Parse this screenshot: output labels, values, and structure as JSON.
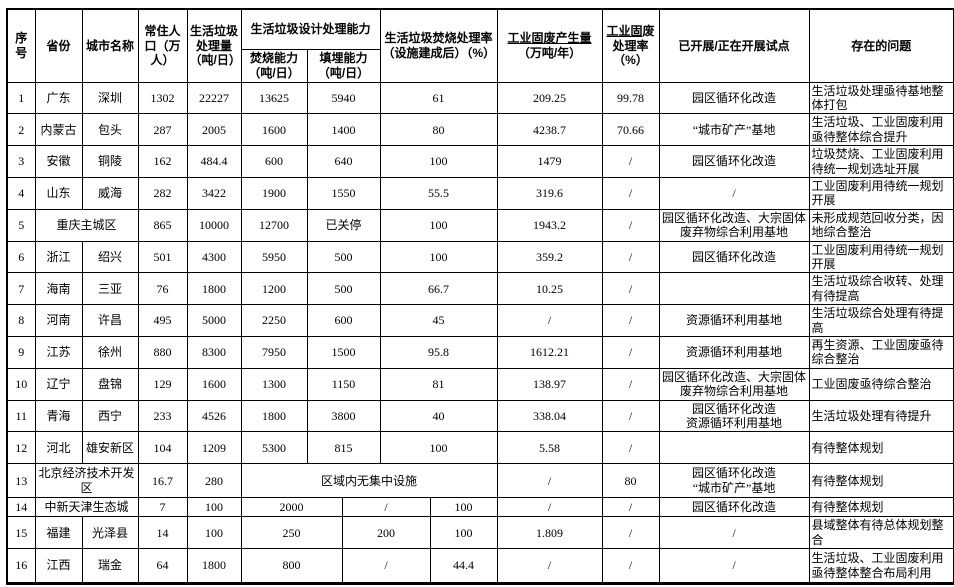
{
  "table": {
    "headers": {
      "no": "序号",
      "province": "省份",
      "city": "城市名称",
      "population": "常住人口（万人）",
      "daily_amount": "生活垃圾处理量（吨/日）",
      "design_capacity": "生活垃圾设计处理能力",
      "incineration_capacity": "焚烧能力（吨/日）",
      "landfill_capacity": "填埋能力（吨/日）",
      "incineration_rate": "生活垃圾焚烧处理率（设施建成后）（%）",
      "industrial_gen_underlined": "工业固废产生量",
      "industrial_gen_unit": "（万吨/年）",
      "industrial_rate_underlined": "工业固",
      "industrial_rate_rest": "废处理率（%）",
      "pilots": "已开展/正在开展试点",
      "problems": "存在的问题"
    },
    "rows": [
      {
        "no": "1",
        "province": "广东",
        "city": "深圳",
        "population": "1302",
        "daily_amount": "22227",
        "capacity": [
          "13625",
          "5940",
          "61"
        ],
        "industrial_gen": "209.25",
        "industrial_rate": "99.78",
        "pilot": "园区循环化改造",
        "problem": "生活垃圾处理亟待基地整体打包"
      },
      {
        "no": "2",
        "province": "内蒙古",
        "city": "包头",
        "population": "287",
        "daily_amount": "2005",
        "capacity": [
          "1600",
          "1400",
          "80"
        ],
        "industrial_gen": "4238.7",
        "industrial_rate": "70.66",
        "pilot": "“城市矿产”基地",
        "problem": "生活垃圾、工业固废利用亟待整体综合提升"
      },
      {
        "no": "3",
        "province": "安徽",
        "city": "铜陵",
        "population": "162",
        "daily_amount": "484.4",
        "capacity": [
          "600",
          "640",
          "100"
        ],
        "industrial_gen": "1479",
        "industrial_rate": "/",
        "pilot": "园区循环化改造",
        "problem": "垃圾焚烧、工业固废利用待统一规划选址开展"
      },
      {
        "no": "4",
        "province": "山东",
        "city": "威海",
        "population": "282",
        "daily_amount": "3422",
        "capacity": [
          "1900",
          "1550",
          "55.5"
        ],
        "industrial_gen": "319.6",
        "industrial_rate": "/",
        "pilot": "/",
        "problem": "工业固废利用待统一规划开展"
      },
      {
        "no": "5",
        "province": "重庆主城区",
        "city": "",
        "name_merged": true,
        "population": "865",
        "daily_amount": "10000",
        "capacity": [
          "12700",
          "已关停",
          "100"
        ],
        "industrial_gen": "1943.2",
        "industrial_rate": "/",
        "pilot": "园区循环化改造、大宗固体废弃物综合利用基地",
        "problem": "未形成规范回收分类，因地综合整治"
      },
      {
        "no": "6",
        "province": "浙江",
        "city": "绍兴",
        "population": "501",
        "daily_amount": "4300",
        "capacity": [
          "5950",
          "500",
          "100"
        ],
        "industrial_gen": "359.2",
        "industrial_rate": "/",
        "pilot": "园区循环化改造",
        "problem": "工业固废利用待统一规划开展"
      },
      {
        "no": "7",
        "province": "海南",
        "city": "三亚",
        "population": "76",
        "daily_amount": "1800",
        "capacity": [
          "1200",
          "500",
          "66.7"
        ],
        "industrial_gen": "10.25",
        "industrial_rate": "/",
        "pilot": "",
        "problem": "生活垃圾综合收转、处理有待提高"
      },
      {
        "no": "8",
        "province": "河南",
        "city": "许昌",
        "population": "495",
        "daily_amount": "5000",
        "capacity": [
          "2250",
          "600",
          "45"
        ],
        "industrial_gen": "/",
        "industrial_rate": "/",
        "pilot": "资源循环利用基地",
        "problem": "生活垃圾综合处理有待提高"
      },
      {
        "no": "9",
        "province": "江苏",
        "city": "徐州",
        "population": "880",
        "daily_amount": "8300",
        "capacity": [
          "7950",
          "1500",
          "95.8"
        ],
        "industrial_gen": "1612.21",
        "industrial_rate": "/",
        "pilot": "资源循环利用基地",
        "problem": "再生资源、工业固废亟待综合整治"
      },
      {
        "no": "10",
        "province": "辽宁",
        "city": "盘锦",
        "population": "129",
        "daily_amount": "1600",
        "capacity": [
          "1300",
          "1150",
          "81"
        ],
        "industrial_gen": "138.97",
        "industrial_rate": "/",
        "pilot": "园区循环化改造、大宗固体废弃物综合利用基地",
        "problem": "工业固废亟待综合整治"
      },
      {
        "no": "11",
        "province": "青海",
        "city": "西宁",
        "population": "233",
        "daily_amount": "4526",
        "capacity": [
          "1800",
          "3800",
          "40"
        ],
        "industrial_gen": "338.04",
        "industrial_rate": "/",
        "pilot": "园区循环化改造\n资源循环利用基地",
        "problem": "生活垃圾处理有待提升"
      },
      {
        "no": "12",
        "province": "河北",
        "city": "雄安新区",
        "population": "104",
        "daily_amount": "1209",
        "capacity": [
          "5300",
          "815",
          "100"
        ],
        "industrial_gen": "5.58",
        "industrial_rate": "/",
        "pilot": "",
        "problem": "有待整体规划"
      },
      {
        "no": "13",
        "province": "北京经济技术开发区",
        "city": "",
        "name_merged": true,
        "capacity_layout": "merged",
        "population": "16.7",
        "daily_amount": "280",
        "capacity": [
          "区域内无集中设施"
        ],
        "industrial_gen": "/",
        "industrial_rate": "80",
        "pilot": "园区循环化改造\n“城市矿产”基地",
        "problem": "有待整体规划"
      },
      {
        "no": "14",
        "province": "中新天津生态城",
        "city": "",
        "name_merged": true,
        "capacity_layout": "offset",
        "population": "7",
        "daily_amount": "100",
        "capacity": [
          "2000",
          "/",
          "100"
        ],
        "industrial_gen": "/",
        "industrial_rate": "/",
        "pilot": "园区循环化改造",
        "problem": "有待整体规划"
      },
      {
        "no": "15",
        "province": "福建",
        "city": "光泽县",
        "capacity_layout": "offset",
        "population": "14",
        "daily_amount": "100",
        "capacity": [
          "250",
          "200",
          "100"
        ],
        "industrial_gen": "1.809",
        "industrial_rate": "/",
        "pilot": "/",
        "problem": "县域整体有待总体规划整合"
      },
      {
        "no": "16",
        "province": "江西",
        "city": "瑞金",
        "capacity_layout": "offset",
        "population": "64",
        "daily_amount": "1800",
        "capacity": [
          "800",
          "/",
          "44.4"
        ],
        "industrial_gen": "/",
        "industrial_rate": "/",
        "pilot": "/",
        "problem": "生活垃圾、工业固废利用亟待整体整合布局利用"
      }
    ]
  }
}
